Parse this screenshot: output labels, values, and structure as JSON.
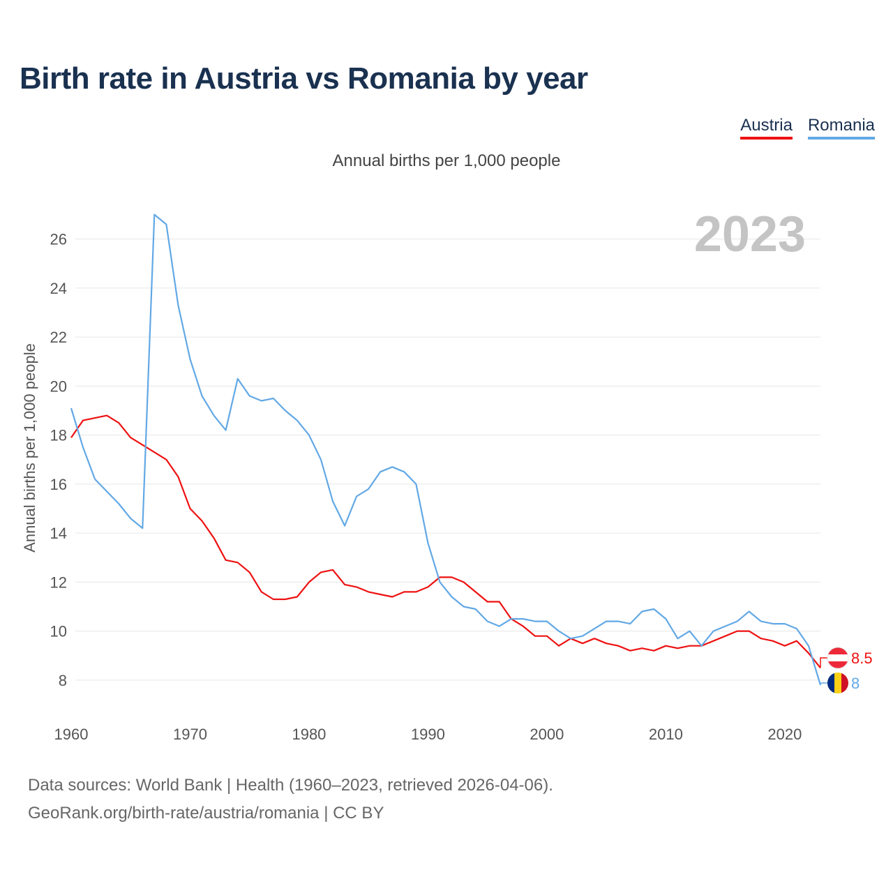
{
  "title": "Birth rate in Austria vs Romania by year",
  "subtitle": "Annual births per 1,000 people",
  "legend": [
    {
      "label": "Austria",
      "color": "#ee1111"
    },
    {
      "label": "Romania",
      "color": "#62a8e5"
    }
  ],
  "footer": {
    "line1": "Data sources: World Bank | Health (1960–2023, retrieved 2026-04-06).",
    "line2": "GeoRank.org/birth-rate/austria/romania | CC BY"
  },
  "chart_data": {
    "type": "line",
    "title": "Birth rate in Austria vs Romania by year",
    "xlabel": "",
    "ylabel": "Annual births per 1,000 people",
    "year_label": "2023",
    "xlim": [
      1960,
      2023
    ],
    "ylim": [
      7,
      27.5
    ],
    "x_ticks": [
      1960,
      1970,
      1980,
      1990,
      2000,
      2010,
      2020
    ],
    "y_ticks": [
      8,
      10,
      12,
      14,
      16,
      18,
      20,
      22,
      24,
      26
    ],
    "grid": true,
    "x": [
      1960,
      1961,
      1962,
      1963,
      1964,
      1965,
      1966,
      1967,
      1968,
      1969,
      1970,
      1971,
      1972,
      1973,
      1974,
      1975,
      1976,
      1977,
      1978,
      1979,
      1980,
      1981,
      1982,
      1983,
      1984,
      1985,
      1986,
      1987,
      1988,
      1989,
      1990,
      1991,
      1992,
      1993,
      1994,
      1995,
      1996,
      1997,
      1998,
      1999,
      2000,
      2001,
      2002,
      2003,
      2004,
      2005,
      2006,
      2007,
      2008,
      2009,
      2010,
      2011,
      2012,
      2013,
      2014,
      2015,
      2016,
      2017,
      2018,
      2019,
      2020,
      2021,
      2022,
      2023
    ],
    "series": [
      {
        "name": "Austria",
        "color": "#ee1111",
        "end_label": "8.5",
        "values": [
          17.9,
          18.6,
          18.7,
          18.8,
          18.5,
          17.9,
          17.6,
          17.3,
          17.0,
          16.3,
          15.0,
          14.5,
          13.8,
          12.9,
          12.8,
          12.4,
          11.6,
          11.3,
          11.3,
          11.4,
          12.0,
          12.4,
          12.5,
          11.9,
          11.8,
          11.6,
          11.5,
          11.4,
          11.6,
          11.6,
          11.8,
          12.2,
          12.2,
          12.0,
          11.6,
          11.2,
          11.2,
          10.5,
          10.2,
          9.8,
          9.8,
          9.4,
          9.7,
          9.5,
          9.7,
          9.5,
          9.4,
          9.2,
          9.3,
          9.2,
          9.4,
          9.3,
          9.4,
          9.4,
          9.6,
          9.8,
          10.0,
          10.0,
          9.7,
          9.6,
          9.4,
          9.6,
          9.1,
          8.5
        ]
      },
      {
        "name": "Romania",
        "color": "#62a8e5",
        "end_label": "8",
        "values": [
          19.1,
          17.5,
          16.2,
          15.7,
          15.2,
          14.6,
          14.2,
          27.0,
          26.6,
          23.3,
          21.1,
          19.6,
          18.8,
          18.2,
          20.3,
          19.6,
          19.4,
          19.5,
          19.0,
          18.6,
          18.0,
          17.0,
          15.3,
          14.3,
          15.5,
          15.8,
          16.5,
          16.7,
          16.5,
          16.0,
          13.6,
          12.0,
          11.4,
          11.0,
          10.9,
          10.4,
          10.2,
          10.5,
          10.5,
          10.4,
          10.4,
          10.0,
          9.7,
          9.8,
          10.1,
          10.4,
          10.4,
          10.3,
          10.8,
          10.9,
          10.5,
          9.7,
          10.0,
          9.4,
          10.0,
          10.2,
          10.4,
          10.8,
          10.4,
          10.3,
          10.3,
          10.1,
          9.4,
          7.8
        ]
      }
    ]
  }
}
